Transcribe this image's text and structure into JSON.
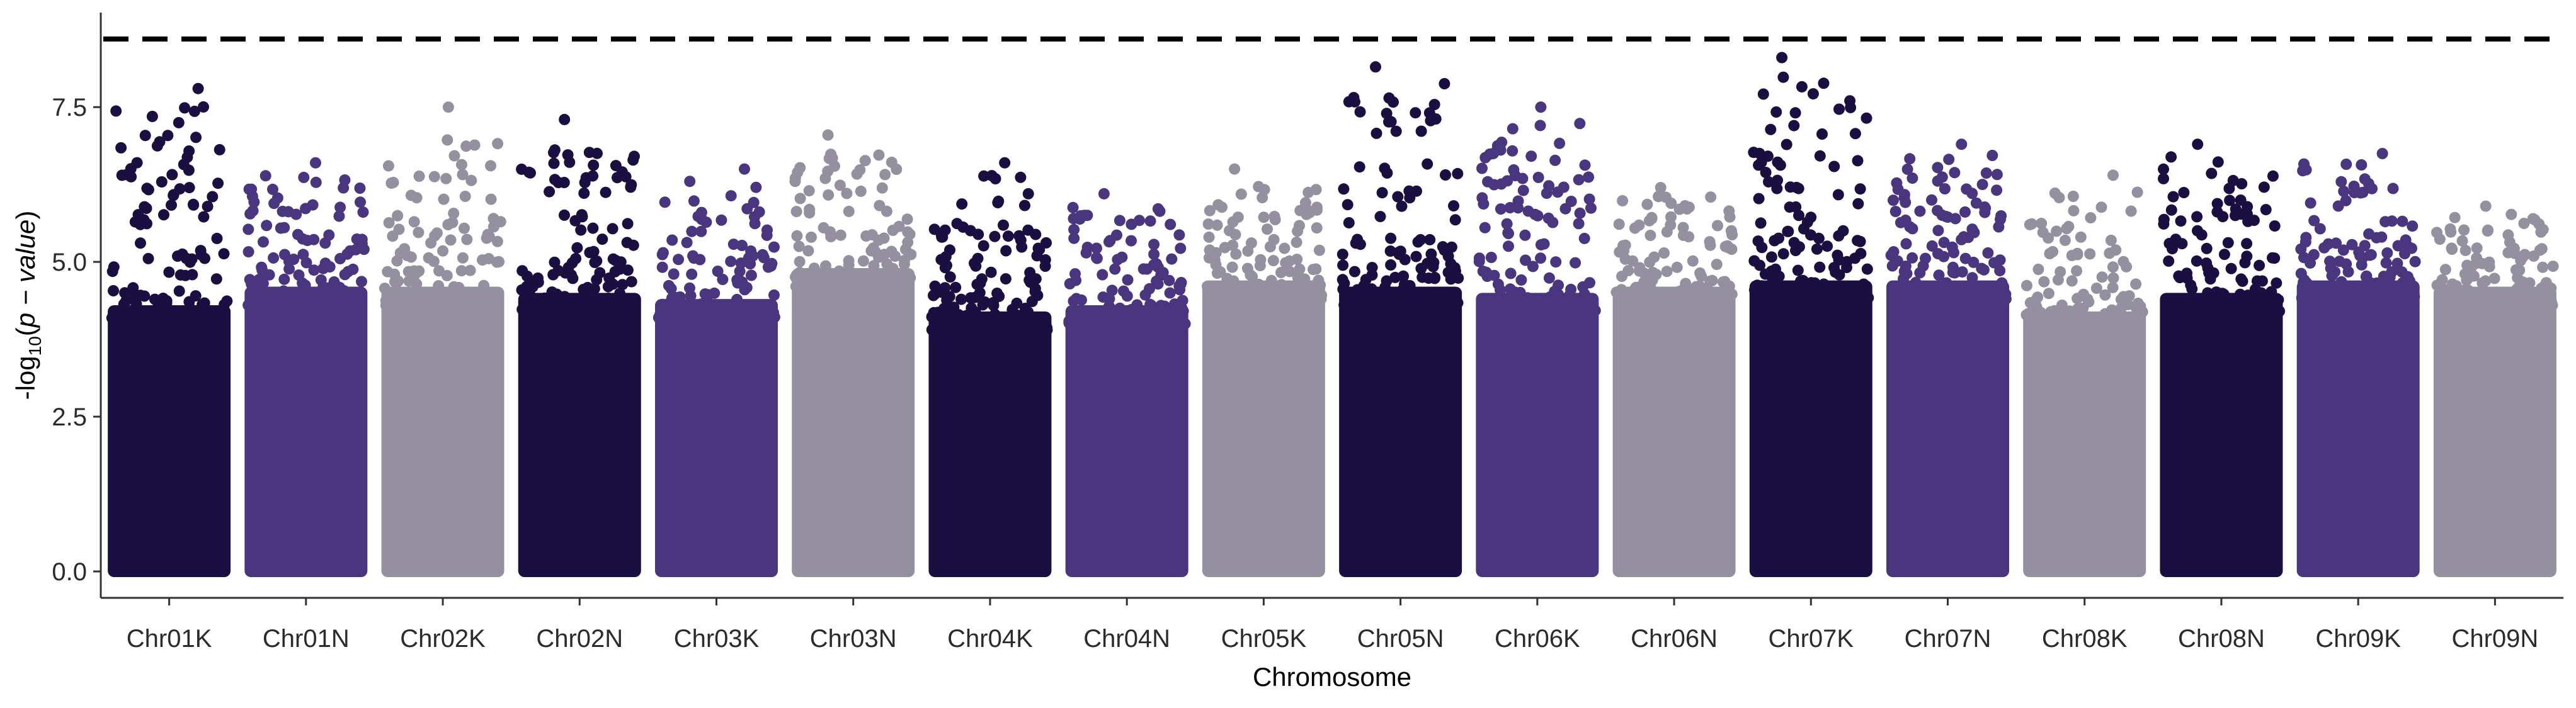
{
  "chart_data": {
    "type": "scatter",
    "subtype": "manhattan",
    "xlabel": "Chromosome",
    "ylabel": "-log10(p - value)",
    "ylabel_parts": {
      "prefix": "-log",
      "subscript": "10",
      "open": "(",
      "italic": "p − value",
      "close": ")"
    },
    "ylim": [
      0,
      8.6
    ],
    "yticks": [
      0.0,
      2.5,
      5.0,
      7.5
    ],
    "ytick_labels": [
      "0.0",
      "2.5",
      "5.0",
      "7.5"
    ],
    "threshold": 8.6,
    "threshold_style": "dashed",
    "grid": false,
    "legend": "none",
    "palette": [
      "#1b0e40",
      "#4a367e",
      "#9590a0"
    ],
    "categories": [
      "Chr01K",
      "Chr01N",
      "Chr02K",
      "Chr02N",
      "Chr03K",
      "Chr03N",
      "Chr04K",
      "Chr04N",
      "Chr05K",
      "Chr05N",
      "Chr06K",
      "Chr06N",
      "Chr07K",
      "Chr07N",
      "Chr08K",
      "Chr08N",
      "Chr09K",
      "Chr09N"
    ],
    "series": [
      {
        "chromosome": "Chr01K",
        "color_index": 0,
        "max": 7.8,
        "dense_top": 4.3
      },
      {
        "chromosome": "Chr01N",
        "color_index": 1,
        "max": 6.6,
        "dense_top": 4.6
      },
      {
        "chromosome": "Chr02K",
        "color_index": 2,
        "max": 7.5,
        "dense_top": 4.6
      },
      {
        "chromosome": "Chr02N",
        "color_index": 0,
        "max": 7.3,
        "dense_top": 4.5
      },
      {
        "chromosome": "Chr03K",
        "color_index": 1,
        "max": 6.5,
        "dense_top": 4.4
      },
      {
        "chromosome": "Chr03N",
        "color_index": 2,
        "max": 7.05,
        "dense_top": 4.9
      },
      {
        "chromosome": "Chr04K",
        "color_index": 0,
        "max": 6.6,
        "dense_top": 4.2
      },
      {
        "chromosome": "Chr04N",
        "color_index": 1,
        "max": 6.1,
        "dense_top": 4.3
      },
      {
        "chromosome": "Chr05K",
        "color_index": 2,
        "max": 6.5,
        "dense_top": 4.7
      },
      {
        "chromosome": "Chr05N",
        "color_index": 0,
        "max": 8.15,
        "dense_top": 4.6
      },
      {
        "chromosome": "Chr06K",
        "color_index": 1,
        "max": 7.5,
        "dense_top": 4.5
      },
      {
        "chromosome": "Chr06N",
        "color_index": 2,
        "max": 6.2,
        "dense_top": 4.6
      },
      {
        "chromosome": "Chr07K",
        "color_index": 0,
        "max": 8.3,
        "dense_top": 4.7
      },
      {
        "chromosome": "Chr07N",
        "color_index": 1,
        "max": 6.9,
        "dense_top": 4.7
      },
      {
        "chromosome": "Chr08K",
        "color_index": 2,
        "max": 6.4,
        "dense_top": 4.2
      },
      {
        "chromosome": "Chr08N",
        "color_index": 0,
        "max": 6.9,
        "dense_top": 4.5
      },
      {
        "chromosome": "Chr09K",
        "color_index": 1,
        "max": 6.75,
        "dense_top": 4.7
      },
      {
        "chromosome": "Chr09N",
        "color_index": 2,
        "max": 5.9,
        "dense_top": 4.6
      }
    ]
  }
}
